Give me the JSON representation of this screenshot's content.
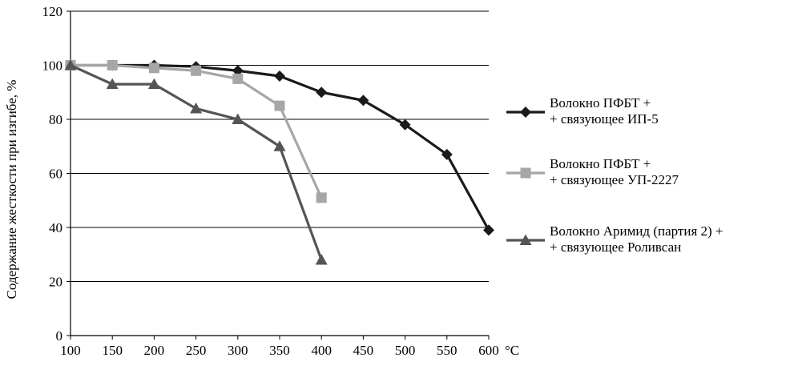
{
  "chart_data": {
    "type": "line",
    "title": "",
    "xlabel": "",
    "ylabel": "Содержание жесткости при изгибе, %",
    "x_unit": "°С",
    "x": [
      100,
      150,
      200,
      250,
      300,
      350,
      400,
      450,
      500,
      550,
      600
    ],
    "xlim": [
      100,
      600
    ],
    "ylim": [
      0,
      120
    ],
    "yticks": [
      0,
      20,
      40,
      60,
      80,
      100,
      120
    ],
    "grid": "horizontal",
    "legend_position": "right",
    "series": [
      {
        "name_line1": "Волокно ПФБТ +",
        "name_line2": "+ связующее ИП-5",
        "color": "#1a1a1a",
        "marker": "diamond",
        "x": [
          100,
          150,
          200,
          250,
          300,
          350,
          400,
          450,
          500,
          550,
          600
        ],
        "values": [
          100,
          100,
          100,
          99.5,
          98,
          96,
          90,
          87,
          78,
          67,
          39
        ]
      },
      {
        "name_line1": "Волокно ПФБТ +",
        "name_line2": "+ связующее УП-2227",
        "color": "#a6a6a6",
        "marker": "square",
        "x": [
          100,
          150,
          200,
          250,
          300,
          350,
          400
        ],
        "values": [
          100,
          100,
          99,
          98,
          95,
          85,
          51
        ]
      },
      {
        "name_line1": "Волокно Аримид (партия 2) +",
        "name_line2": "+ связующее Роливсан",
        "color": "#555555",
        "marker": "triangle",
        "x": [
          100,
          150,
          200,
          250,
          300,
          350,
          400
        ],
        "values": [
          100,
          93,
          93,
          84,
          80,
          70,
          28
        ]
      }
    ]
  }
}
